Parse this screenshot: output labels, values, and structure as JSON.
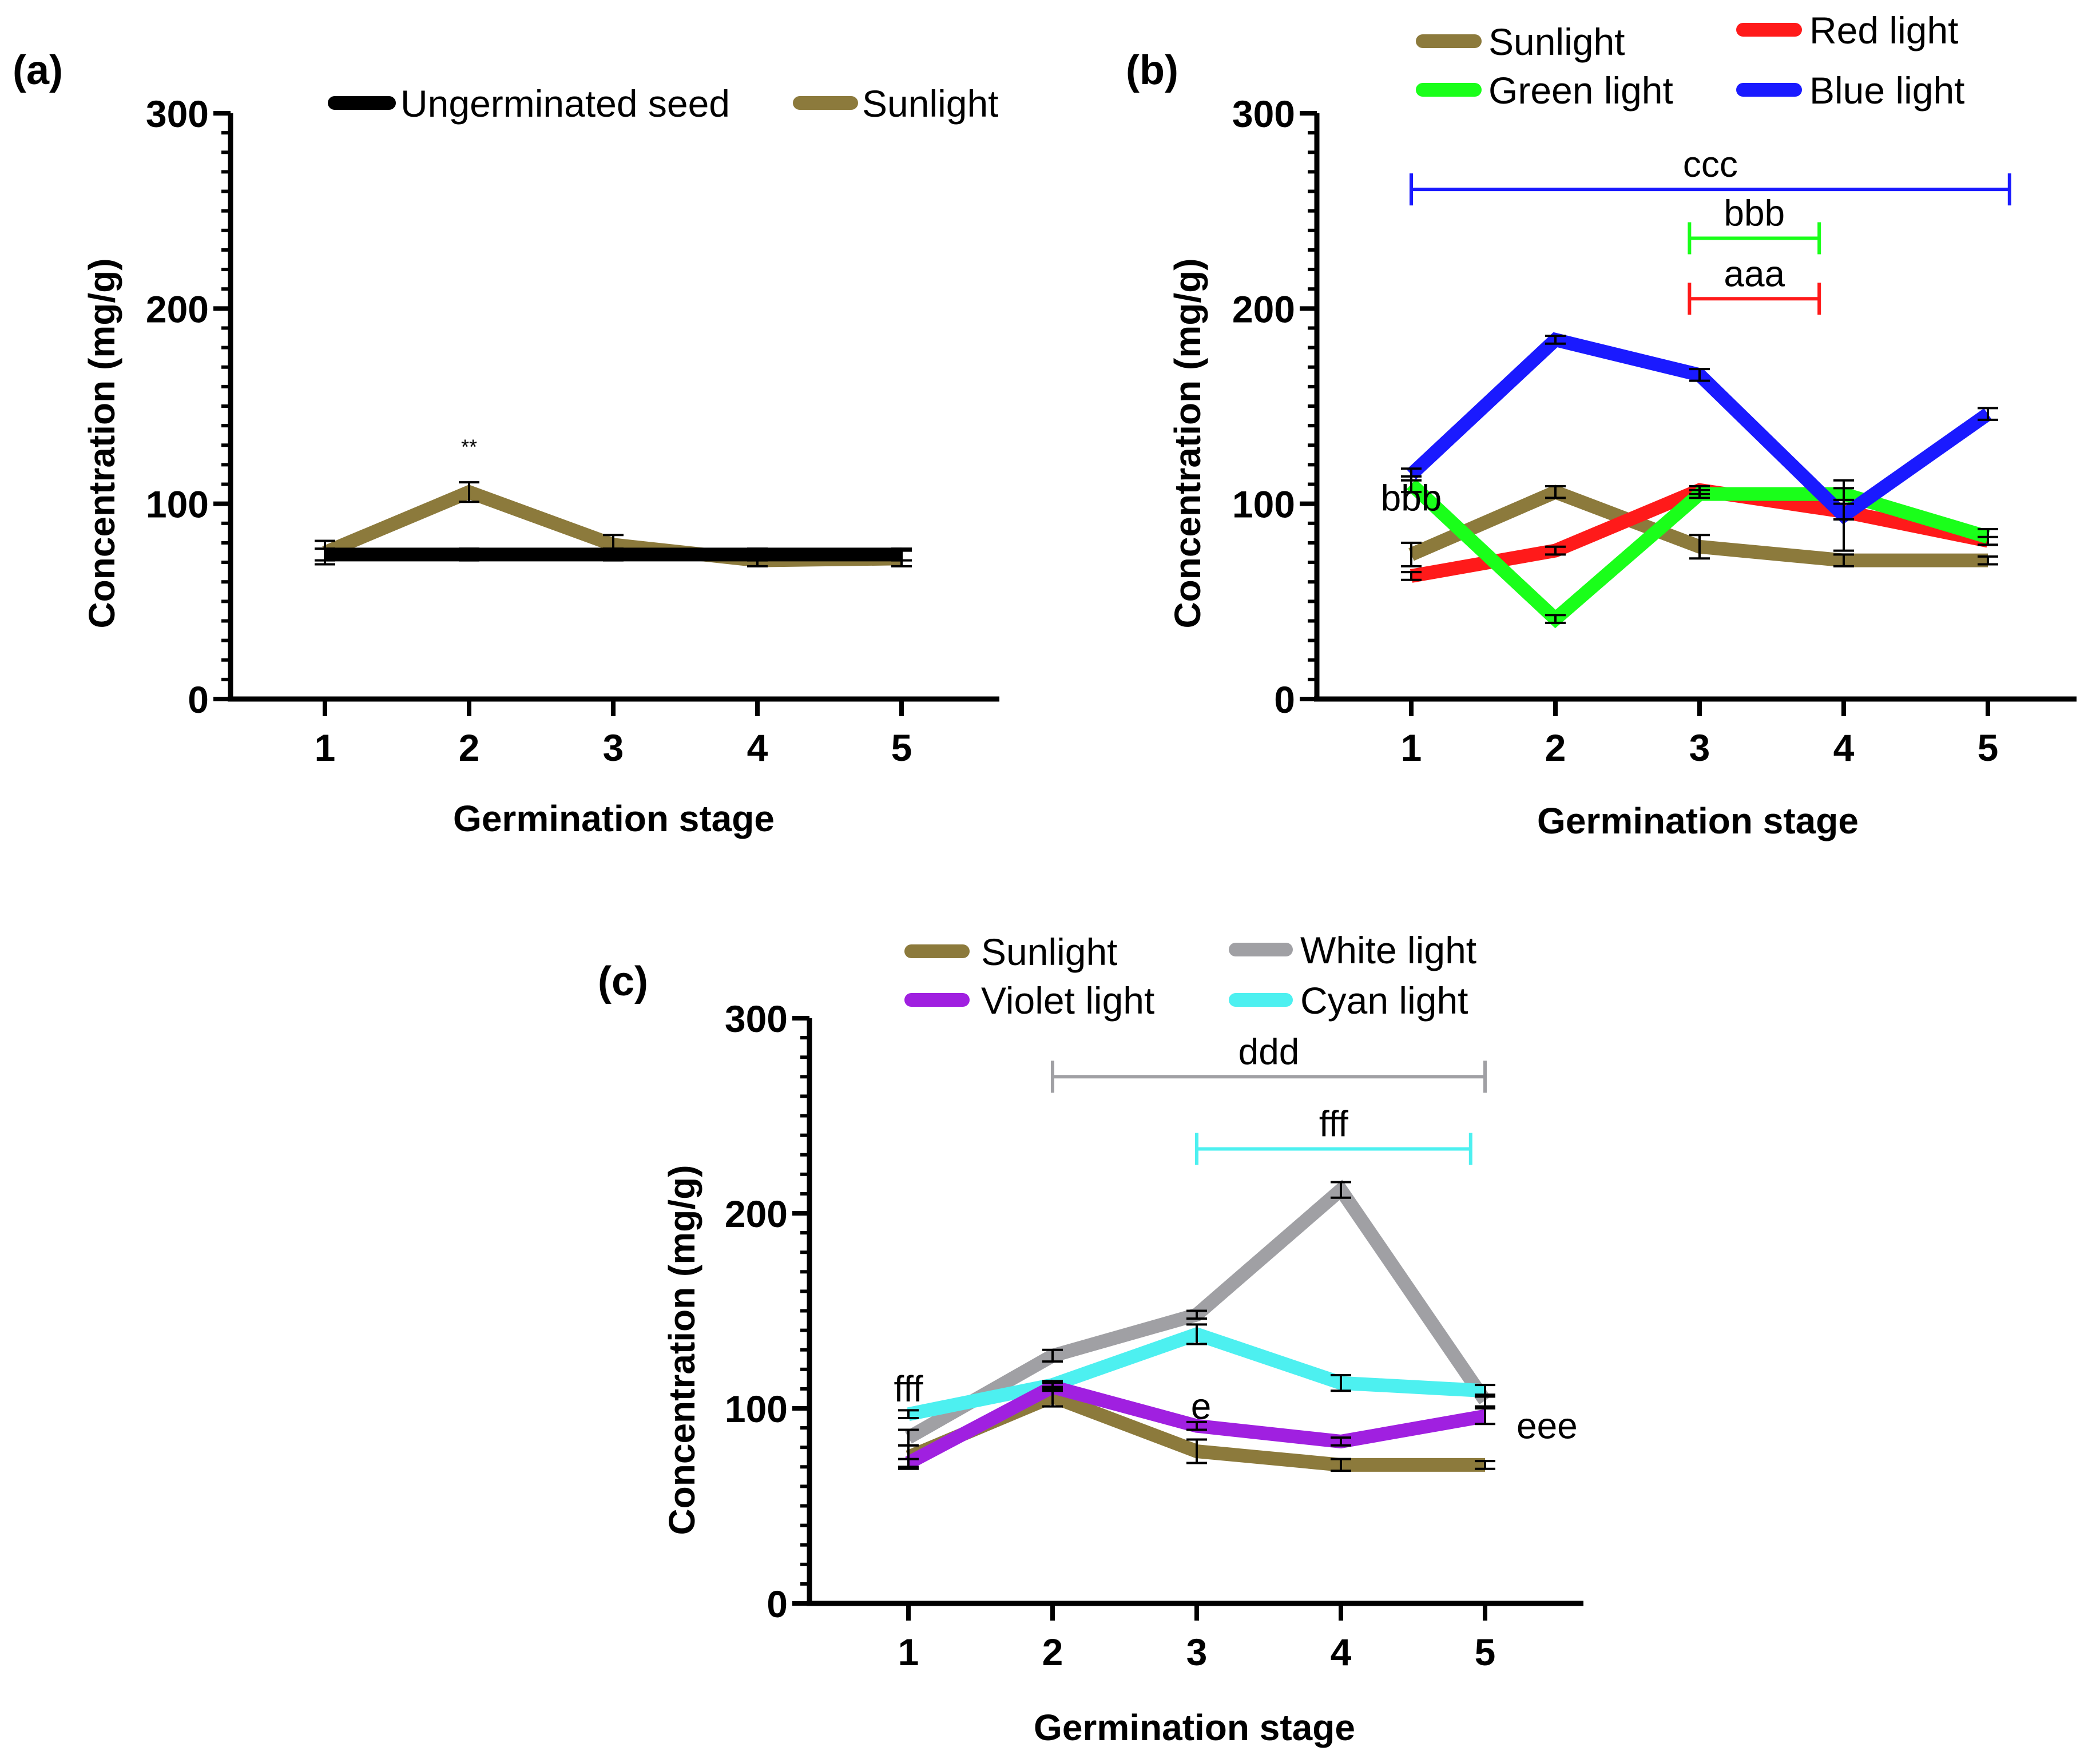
{
  "figure": {
    "series_colors": {
      "Ungerminated seed": "#000000",
      "Sunlight": "#8c7a3c",
      "Red light": "#ff1a1a",
      "Green light": "#1aff1a",
      "Blue light": "#1a1aff",
      "White light": "#a0a0a4",
      "Violet light": "#a020e0",
      "Cyan light": "#4df0f0"
    }
  },
  "chart_data": [
    {
      "id": "a",
      "panel_label": "(a)",
      "type": "line",
      "xlabel": "Germination stage",
      "ylabel": "Concentration (mg/g)",
      "categories": [
        "1",
        "2",
        "3",
        "4",
        "5"
      ],
      "ylim": [
        0,
        300
      ],
      "yticks": [
        0,
        100,
        200,
        300
      ],
      "legend": [
        "Ungerminated seed",
        "Sunlight"
      ],
      "series": [
        {
          "name": "Ungerminated seed",
          "values": [
            74,
            74,
            74,
            74,
            74
          ],
          "errors": [
            3,
            3,
            3,
            3,
            3
          ]
        },
        {
          "name": "Sunlight",
          "values": [
            75,
            106,
            79,
            71,
            72
          ],
          "errors": [
            6,
            5,
            5,
            3,
            4
          ]
        }
      ],
      "annotations": [
        {
          "text": "**",
          "x": 2,
          "y": 132
        }
      ],
      "brackets": []
    },
    {
      "id": "b",
      "panel_label": "(b)",
      "type": "line",
      "xlabel": "Germination stage",
      "ylabel": "Concentration (mg/g)",
      "categories": [
        "1",
        "2",
        "3",
        "4",
        "5"
      ],
      "ylim": [
        0,
        300
      ],
      "yticks": [
        0,
        100,
        200,
        300
      ],
      "legend": [
        "Sunlight",
        "Green light",
        "Red light",
        "Blue light"
      ],
      "series": [
        {
          "name": "Sunlight",
          "values": [
            74,
            106,
            78,
            71,
            71
          ],
          "errors": [
            6,
            3,
            6,
            3,
            2
          ]
        },
        {
          "name": "Red light",
          "values": [
            63,
            76,
            107,
            96,
            81
          ],
          "errors": [
            2,
            2,
            2,
            4,
            2
          ]
        },
        {
          "name": "Green light",
          "values": [
            110,
            41,
            105,
            105,
            83
          ],
          "errors": [
            4,
            2,
            2,
            3,
            4
          ]
        },
        {
          "name": "Blue light",
          "values": [
            115,
            184,
            166,
            94,
            146
          ],
          "errors": [
            3,
            2,
            3,
            18,
            3
          ]
        }
      ],
      "annotations": [
        {
          "text": "bbb",
          "x": 1,
          "y": 103,
          "color": "#000000"
        }
      ],
      "brackets": [
        {
          "text": "ccc",
          "x1": 1,
          "x2": 5.15,
          "y": 261,
          "color": "#1a1aff"
        },
        {
          "text": "bbb",
          "x1": 2.93,
          "x2": 3.83,
          "y": 236,
          "color": "#1aff1a"
        },
        {
          "text": "aaa",
          "x1": 2.93,
          "x2": 3.83,
          "y": 205,
          "color": "#ff1a1a"
        }
      ]
    },
    {
      "id": "c",
      "panel_label": "(c)",
      "type": "line",
      "xlabel": "Germination stage",
      "ylabel": "Concentration (mg/g)",
      "categories": [
        "1",
        "2",
        "3",
        "4",
        "5"
      ],
      "ylim": [
        0,
        300
      ],
      "yticks": [
        0,
        100,
        200,
        300
      ],
      "legend": [
        "Sunlight",
        "Violet light",
        "White light",
        "Cyan light"
      ],
      "series": [
        {
          "name": "Sunlight",
          "values": [
            75,
            106,
            78,
            71,
            71
          ],
          "errors": [
            6,
            5,
            6,
            3,
            2
          ]
        },
        {
          "name": "White light",
          "values": [
            85,
            127,
            148,
            212,
            104
          ],
          "errors": [
            4,
            3,
            2,
            4,
            3
          ]
        },
        {
          "name": "Cyan light",
          "values": [
            97,
            112,
            138,
            113,
            109
          ],
          "errors": [
            2,
            2,
            5,
            4,
            3
          ]
        },
        {
          "name": "Violet light",
          "values": [
            72,
            111,
            91,
            83,
            96
          ],
          "errors": [
            2,
            2,
            2,
            2,
            4
          ]
        }
      ],
      "annotations": [
        {
          "text": "fff",
          "x": 1,
          "y": 110
        },
        {
          "text": "e",
          "x": 3.03,
          "y": 101
        },
        {
          "text": "eee",
          "x": 5.43,
          "y": 91
        }
      ],
      "brackets": [
        {
          "text": "ddd",
          "x1": 2,
          "x2": 5,
          "y": 270,
          "color": "#a0a0a4"
        },
        {
          "text": "fff",
          "x1": 3,
          "x2": 4.9,
          "y": 233,
          "color": "#4df0f0"
        }
      ]
    }
  ]
}
